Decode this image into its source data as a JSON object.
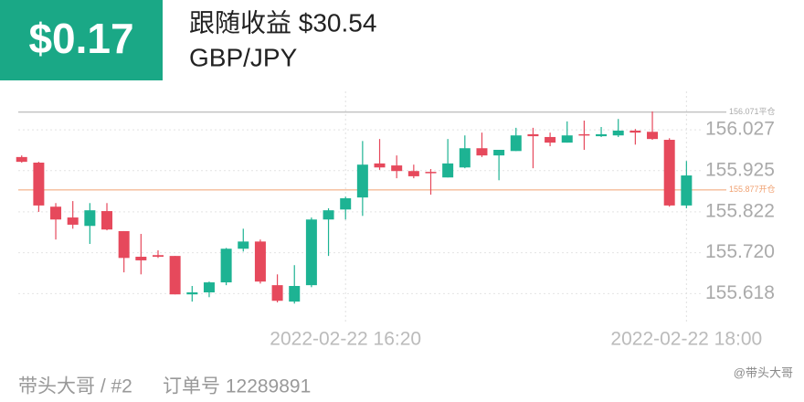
{
  "header": {
    "badge": "$0.17",
    "title": "跟随收益 $30.54",
    "subtitle": "GBP/JPY"
  },
  "chart_data": {
    "type": "candlestick",
    "x": [
      "2022-02-22 14:45",
      "2022-02-22 14:50",
      "2022-02-22 14:55",
      "2022-02-22 15:00",
      "2022-02-22 15:05",
      "2022-02-22 15:10",
      "2022-02-22 15:15",
      "2022-02-22 15:20",
      "2022-02-22 15:25",
      "2022-02-22 15:30",
      "2022-02-22 15:35",
      "2022-02-22 15:40",
      "2022-02-22 15:45",
      "2022-02-22 15:50",
      "2022-02-22 15:55",
      "2022-02-22 16:00",
      "2022-02-22 16:05",
      "2022-02-22 16:10",
      "2022-02-22 16:15",
      "2022-02-22 16:20",
      "2022-02-22 16:25",
      "2022-02-22 16:30",
      "2022-02-22 16:35",
      "2022-02-22 16:40",
      "2022-02-22 16:45",
      "2022-02-22 16:50",
      "2022-02-22 16:55",
      "2022-02-22 17:00",
      "2022-02-22 17:05",
      "2022-02-22 17:10",
      "2022-02-22 17:15",
      "2022-02-22 17:20",
      "2022-02-22 17:25",
      "2022-02-22 17:30",
      "2022-02-22 17:35",
      "2022-02-22 17:40",
      "2022-02-22 17:45",
      "2022-02-22 17:50",
      "2022-02-22 17:55",
      "2022-02-22 18:00"
    ],
    "open": [
      155.959,
      155.945,
      155.835,
      155.808,
      155.787,
      155.824,
      155.774,
      155.71,
      155.714,
      155.712,
      155.616,
      155.621,
      155.646,
      155.73,
      155.748,
      155.639,
      155.598,
      155.639,
      155.803,
      155.828,
      155.858,
      155.943,
      155.938,
      155.924,
      155.922,
      155.908,
      155.933,
      155.981,
      155.963,
      155.974,
      156.016,
      156.009,
      155.995,
      156.016,
      156.011,
      156.013,
      156.025,
      156.022,
      156.002,
      155.838
    ],
    "high": [
      155.963,
      155.947,
      155.844,
      155.849,
      155.844,
      155.844,
      155.774,
      155.767,
      155.726,
      155.712,
      155.637,
      155.648,
      155.732,
      155.78,
      155.753,
      155.666,
      155.689,
      155.808,
      155.831,
      155.86,
      155.999,
      156.004,
      155.963,
      155.94,
      155.929,
      156.004,
      156.013,
      156.02,
      155.974,
      156.032,
      156.032,
      156.02,
      156.048,
      156.05,
      156.034,
      156.054,
      156.029,
      156.073,
      156.006,
      155.949
    ],
    "low": [
      155.945,
      155.822,
      155.753,
      155.78,
      155.742,
      155.776,
      155.671,
      155.666,
      155.707,
      155.616,
      155.598,
      155.609,
      155.639,
      155.723,
      155.643,
      155.596,
      155.593,
      155.634,
      155.712,
      155.803,
      155.812,
      155.927,
      155.906,
      155.906,
      155.865,
      155.908,
      155.931,
      155.959,
      155.901,
      155.974,
      155.931,
      155.986,
      155.995,
      155.977,
      156.009,
      156.009,
      155.99,
      156.002,
      155.835,
      155.831
    ],
    "close": [
      155.947,
      155.838,
      155.803,
      155.79,
      155.826,
      155.778,
      155.707,
      155.701,
      155.71,
      155.616,
      155.621,
      155.646,
      155.73,
      155.748,
      155.648,
      155.6,
      155.637,
      155.803,
      155.826,
      155.856,
      155.94,
      155.933,
      155.924,
      155.911,
      155.92,
      155.943,
      155.981,
      155.963,
      155.977,
      156.013,
      156.011,
      155.995,
      156.013,
      156.013,
      156.016,
      156.025,
      156.02,
      156.004,
      155.838,
      155.913
    ],
    "up_color": "#1db393",
    "down_color": "#e6495c",
    "ylim": [
      155.564,
      156.123
    ],
    "yticks": [
      156.027,
      155.925,
      155.822,
      {
        "value": 155.72,
        "label": "155.720"
      },
      155.618
    ],
    "xlim": [
      "2022-02-22 14:44",
      "2022-02-22 18:05"
    ],
    "xticks": [
      "2022-02-22 16:20",
      "2022-02-22 18:00"
    ],
    "grid": true,
    "reference_lines": [
      {
        "value": 156.071,
        "label": "156.071平仓",
        "color": "#aaaaaa"
      },
      {
        "value": 155.877,
        "label": "155.877开仓",
        "color": "#f0a070"
      }
    ]
  },
  "footer": {
    "account": "带头大哥 / #2",
    "order": "订单号 12289891",
    "watermark": "@带头大哥"
  }
}
